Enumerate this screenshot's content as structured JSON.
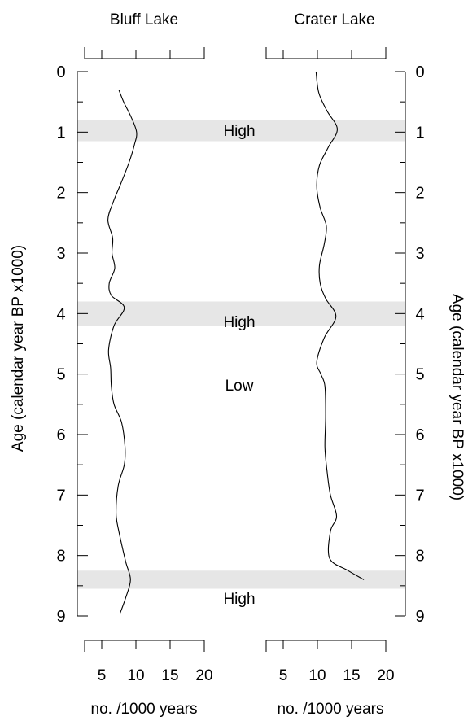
{
  "chart_data": {
    "type": "line",
    "y_axis": {
      "label": "Age (calendar year BP x1000)",
      "range": [
        0,
        9
      ],
      "ticks": [
        0,
        1,
        2,
        3,
        4,
        5,
        6,
        7,
        8,
        9
      ],
      "inverted": true,
      "shown_on": "left-and-right"
    },
    "panels": [
      {
        "title": "Bluff Lake",
        "xlabel": "no. /1000 years",
        "xlim": [
          2.5,
          20
        ],
        "x_ticks": [
          5,
          10,
          15,
          20
        ],
        "series": [
          {
            "points": [
              [
                7.5,
                0.3
              ],
              [
                8.2,
                0.5
              ],
              [
                9.3,
                0.75
              ],
              [
                10.1,
                1.0
              ],
              [
                9.8,
                1.2
              ],
              [
                9.0,
                1.5
              ],
              [
                7.8,
                1.85
              ],
              [
                6.7,
                2.15
              ],
              [
                5.9,
                2.45
              ],
              [
                6.6,
                2.75
              ],
              [
                6.5,
                3.0
              ],
              [
                6.9,
                3.25
              ],
              [
                6.1,
                3.5
              ],
              [
                6.4,
                3.7
              ],
              [
                8.3,
                3.9
              ],
              [
                6.8,
                4.2
              ],
              [
                6.0,
                4.6
              ],
              [
                6.3,
                4.9
              ],
              [
                6.4,
                5.2
              ],
              [
                6.8,
                5.5
              ],
              [
                7.9,
                5.8
              ],
              [
                8.4,
                6.2
              ],
              [
                8.3,
                6.5
              ],
              [
                7.4,
                6.85
              ],
              [
                7.1,
                7.3
              ],
              [
                7.5,
                7.6
              ],
              [
                8.5,
                8.1
              ],
              [
                9.2,
                8.4
              ],
              [
                8.5,
                8.7
              ],
              [
                7.7,
                8.95
              ]
            ]
          }
        ],
        "shaded_bands": [
          [
            0.8,
            1.15
          ],
          [
            3.8,
            4.2
          ],
          [
            8.25,
            8.55
          ]
        ]
      },
      {
        "title": "Crater Lake",
        "xlabel": "no. /1000 years",
        "xlim": [
          2.5,
          20
        ],
        "x_ticks": [
          5,
          10,
          15,
          20
        ],
        "series": [
          {
            "points": [
              [
                9.8,
                0.0
              ],
              [
                10.2,
                0.35
              ],
              [
                11.4,
                0.65
              ],
              [
                12.9,
                0.95
              ],
              [
                11.6,
                1.25
              ],
              [
                10.3,
                1.55
              ],
              [
                9.9,
                1.9
              ],
              [
                10.4,
                2.25
              ],
              [
                11.3,
                2.55
              ],
              [
                11.0,
                2.85
              ],
              [
                10.3,
                3.2
              ],
              [
                10.4,
                3.5
              ],
              [
                11.2,
                3.75
              ],
              [
                12.7,
                4.05
              ],
              [
                11.0,
                4.4
              ],
              [
                9.9,
                4.8
              ],
              [
                10.5,
                5.0
              ],
              [
                11.1,
                5.2
              ],
              [
                11.2,
                5.7
              ],
              [
                11.1,
                6.2
              ],
              [
                11.4,
                6.6
              ],
              [
                11.9,
                7.0
              ],
              [
                12.8,
                7.35
              ],
              [
                11.9,
                7.6
              ],
              [
                11.8,
                8.05
              ],
              [
                14.5,
                8.25
              ],
              [
                16.8,
                8.4
              ]
            ]
          }
        ],
        "shaded_bands": [
          [
            0.8,
            1.15
          ],
          [
            3.8,
            4.2
          ],
          [
            8.25,
            8.55
          ]
        ]
      }
    ],
    "annotations": [
      {
        "text": "High",
        "y": 1.0
      },
      {
        "text": "High",
        "y": 3.95
      },
      {
        "text": "Low",
        "y": 4.95
      },
      {
        "text": "High",
        "y": 8.4
      }
    ],
    "grid": false,
    "legend": "none"
  }
}
